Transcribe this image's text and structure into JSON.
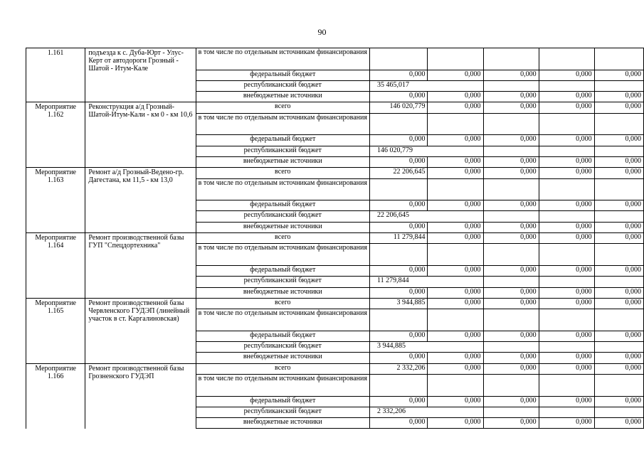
{
  "page_number": "90",
  "source_labels": {
    "total": "всего",
    "incl": "в том числе по отдельным источникам финансирования",
    "fed": "федеральный бюджет",
    "resp": "республиканский бюджет",
    "ext": "внебюджетные источники"
  },
  "groups": [
    {
      "id": "1.161",
      "name": "подъезда к с. Дуба-Юрт - Улус-Керт от автодороги Грозный - Шатой - Итум-Кале",
      "continued": true,
      "total": null,
      "fed": [
        "0,000",
        "0,000",
        "0,000",
        "0,000",
        "0,000"
      ],
      "resp": "35 465,017",
      "ext": [
        "0,000",
        "0,000",
        "0,000",
        "0,000",
        "0,000"
      ]
    },
    {
      "id": "Мероприятие 1.162",
      "name": "Реконструкция а/д Грозный-Шатой-Итум-Кали - км 0 - км 10,6",
      "total": [
        "146 020,779",
        "0,000",
        "0,000",
        "0,000",
        "0,000"
      ],
      "fed": [
        "0,000",
        "0,000",
        "0,000",
        "0,000",
        "0,000"
      ],
      "resp": "146 020,779",
      "ext": [
        "0,000",
        "0,000",
        "0,000",
        "0,000",
        "0,000"
      ]
    },
    {
      "id": "Мероприятие 1.163",
      "name": "Ремонт а/д Грозный-Ведено-гр. Дагестана, км 11,5 - км 13,0",
      "total": [
        "22 206,645",
        "0,000",
        "0,000",
        "0,000",
        "0,000"
      ],
      "fed": [
        "0,000",
        "0,000",
        "0,000",
        "0,000",
        "0,000"
      ],
      "resp": "22 206,645",
      "ext": [
        "0,000",
        "0,000",
        "0,000",
        "0,000",
        "0,000"
      ]
    },
    {
      "id": "Мероприятие 1.164",
      "name": "Ремонт производственной базы ГУП \"Спецдортехника\"",
      "total": [
        "11 279,844",
        "0,000",
        "0,000",
        "0,000",
        "0,000"
      ],
      "fed": [
        "0,000",
        "0,000",
        "0,000",
        "0,000",
        "0,000"
      ],
      "resp": "11 279,844",
      "ext": [
        "0,000",
        "0,000",
        "0,000",
        "0,000",
        "0,000"
      ]
    },
    {
      "id": "Мероприятие 1.165",
      "name": "Ремонт производственной базы Червленского ГУДЭП (линейный участок в ст. Каргалиновская)",
      "total": [
        "3 944,885",
        "0,000",
        "0,000",
        "0,000",
        "0,000"
      ],
      "fed": [
        "0,000",
        "0,000",
        "0,000",
        "0,000",
        "0,000"
      ],
      "resp": "3 944,885",
      "ext": [
        "0,000",
        "0,000",
        "0,000",
        "0,000",
        "0,000"
      ]
    },
    {
      "id": "Мероприятие 1.166",
      "name": "Ремонт производственной базы Грозненского ГУДЭП",
      "total": [
        "2 332,206",
        "0,000",
        "0,000",
        "0,000",
        "0,000"
      ],
      "fed": [
        "0,000",
        "0,000",
        "0,000",
        "0,000",
        "0,000"
      ],
      "resp": "2 332,206",
      "ext": [
        "0,000",
        "0,000",
        "0,000",
        "0,000",
        "0,000"
      ],
      "open_bottom": true
    }
  ]
}
